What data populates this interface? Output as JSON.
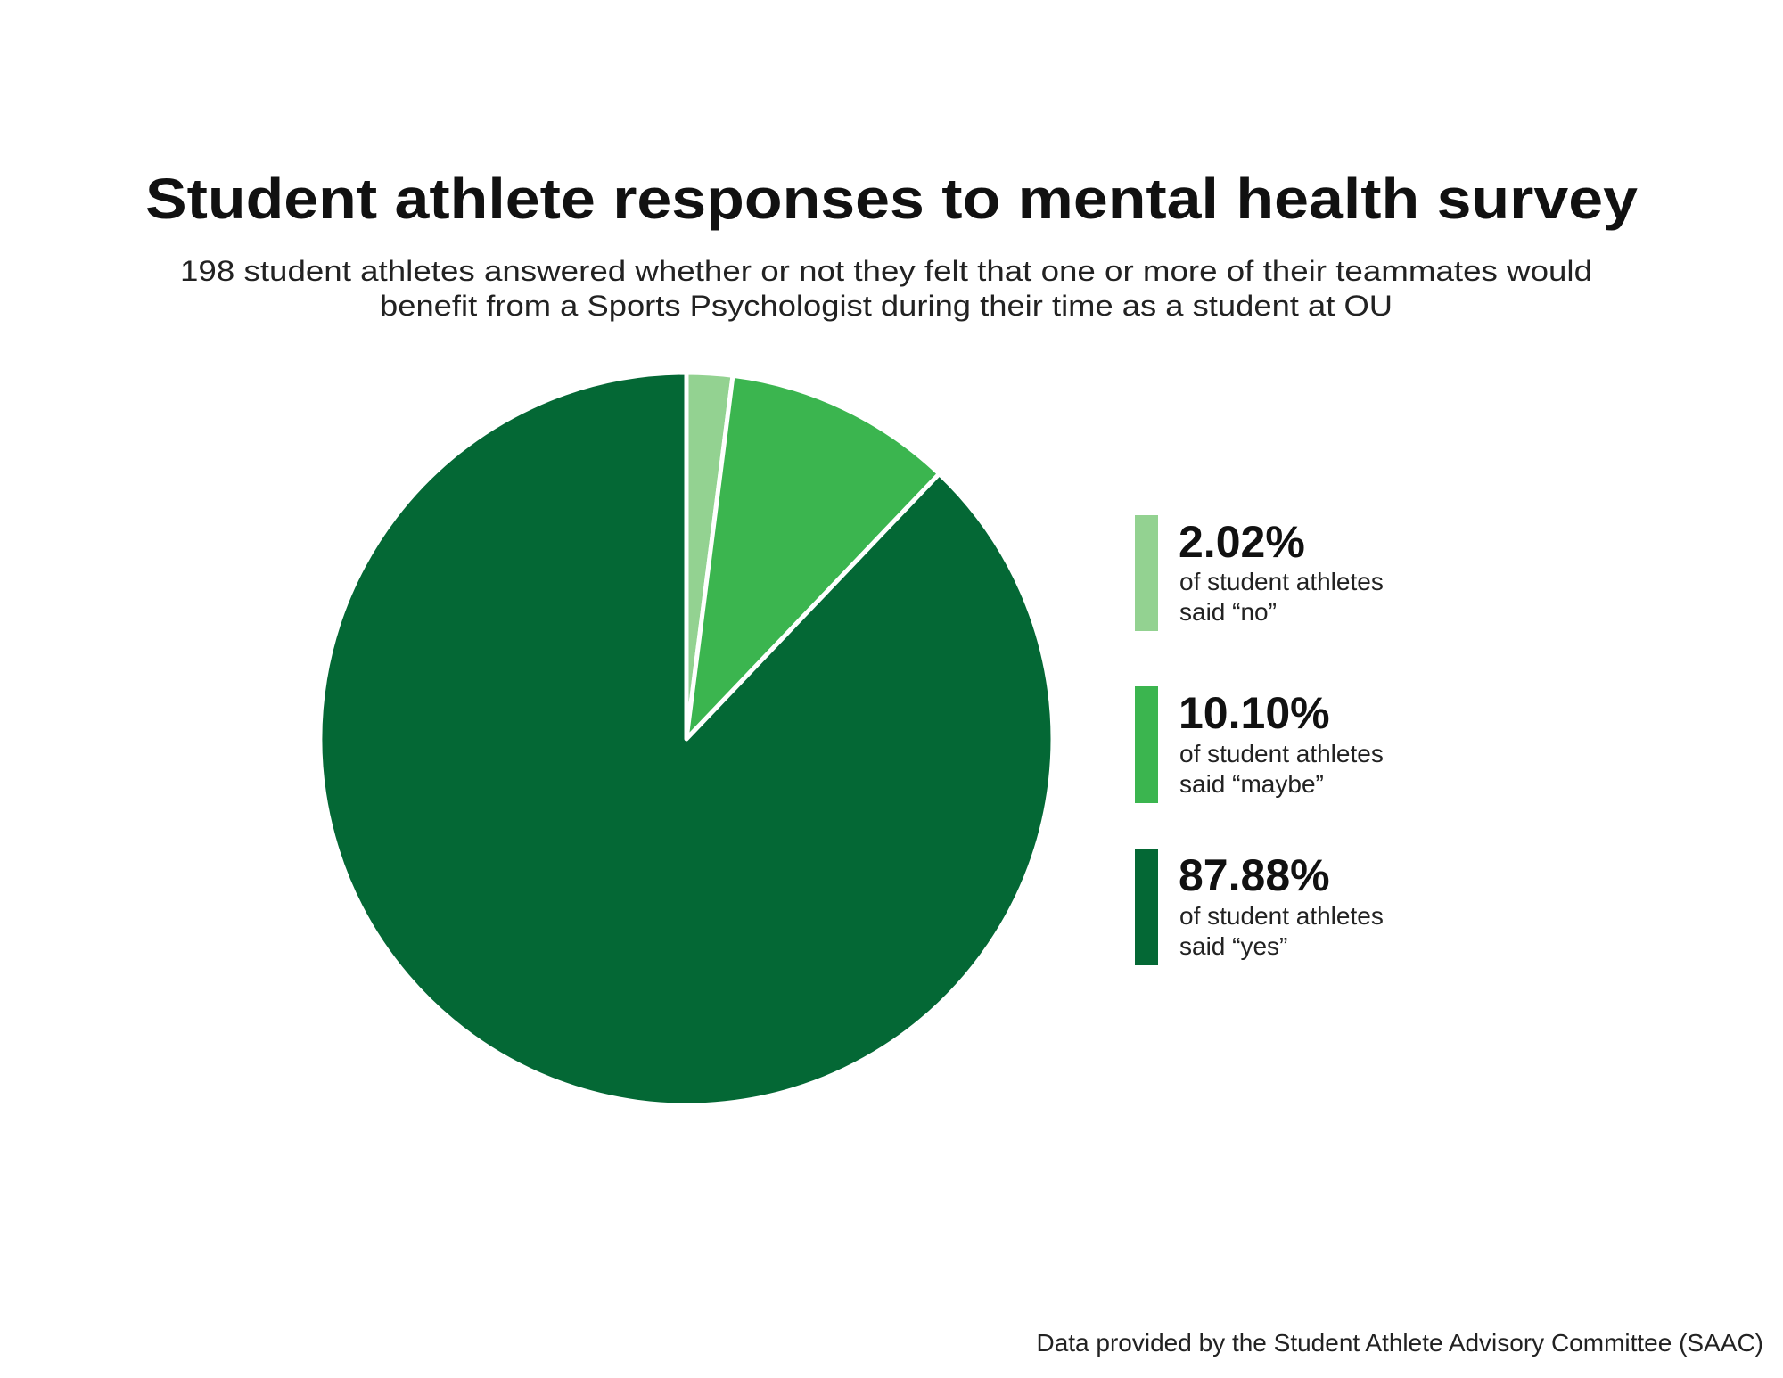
{
  "chart_data": {
    "type": "pie",
    "title": "Student athlete responses to mental health survey",
    "subtitle": [
      "198 student athletes answered whether or not they felt that one or more of their teammates would",
      "benefit from a Sports Psychologist during their time as a student at OU"
    ],
    "slices": [
      {
        "label": "no",
        "value": 2.02,
        "pct_text": "2.02%",
        "line1": "of student athletes",
        "line2": "said “no”",
        "color": "#93d291"
      },
      {
        "label": "maybe",
        "value": 10.1,
        "pct_text": "10.10%",
        "line1": "of student athletes",
        "line2": "said “maybe”",
        "color": "#3bb54f"
      },
      {
        "label": "yes",
        "value": 87.88,
        "pct_text": "87.88%",
        "line1": "of student athletes",
        "line2": "said “yes”",
        "color": "#046835"
      }
    ],
    "legend_position": "right",
    "source": "Data provided by the Student Athlete Advisory Committee (SAAC)"
  }
}
